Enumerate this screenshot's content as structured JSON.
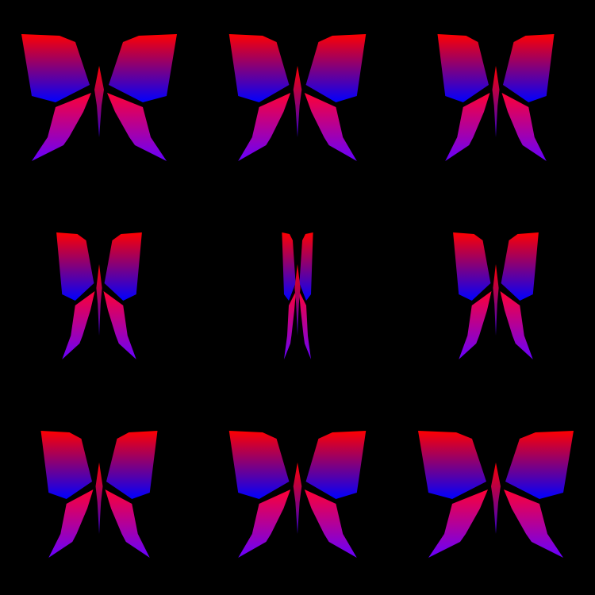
{
  "scene": {
    "background": "#000000",
    "grid": {
      "rows": 3,
      "cols": 3
    },
    "gradient": {
      "upper_wing_top": "#ff0000",
      "upper_wing_bottom": "#0000ff",
      "lower_wing_top": "#ff0033",
      "lower_wing_bottom": "#6600ff",
      "body_top": "#ff0000",
      "body_bottom": "#3300cc"
    },
    "butterflies": [
      {
        "name": "butterfly-top-left",
        "wing_open": 1.0
      },
      {
        "name": "butterfly-top-center",
        "wing_open": 0.88
      },
      {
        "name": "butterfly-top-right",
        "wing_open": 0.75
      },
      {
        "name": "butterfly-middle-left",
        "wing_open": 0.55
      },
      {
        "name": "butterfly-middle-center",
        "wing_open": 0.2
      },
      {
        "name": "butterfly-middle-right",
        "wing_open": 0.55
      },
      {
        "name": "butterfly-bottom-left",
        "wing_open": 0.75
      },
      {
        "name": "butterfly-bottom-center",
        "wing_open": 0.88
      },
      {
        "name": "butterfly-bottom-right",
        "wing_open": 1.0
      }
    ]
  }
}
